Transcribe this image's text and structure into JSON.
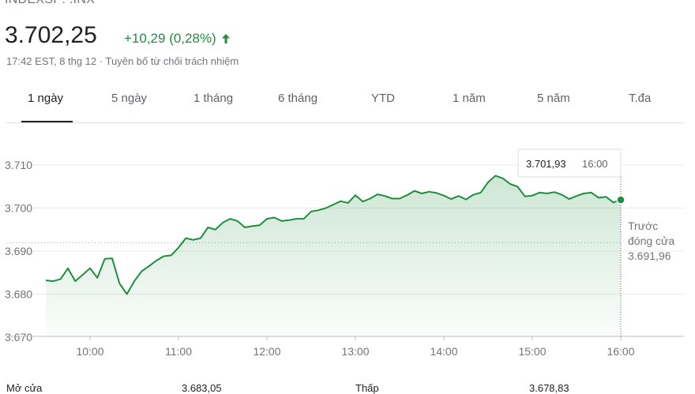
{
  "header": {
    "ticker": "INDEXSP: .INX",
    "price": "3.702,25",
    "change": "+10,29 (0,28%)",
    "change_color": "#1e8e3e",
    "timestamp": "17:42 EST, 8 thg 12",
    "disclaimer": "Tuyên bố từ chối trách nhiệm",
    "separator": " · "
  },
  "tabs": [
    {
      "label": "1 ngày",
      "active": true
    },
    {
      "label": "5 ngày"
    },
    {
      "label": "1 tháng"
    },
    {
      "label": "6 tháng"
    },
    {
      "label": "YTD"
    },
    {
      "label": "1 năm"
    },
    {
      "label": "5 năm"
    },
    {
      "label": "T.đa"
    }
  ],
  "tooltip": {
    "value": "3.701,93",
    "time": "16:00"
  },
  "prev_close": {
    "label_line1": "Trước",
    "label_line2": "đóng cửa",
    "value": "3.691,96"
  },
  "stats": [
    {
      "label": "Mở cửa",
      "value": "3.683,05"
    },
    {
      "label": "Thấp",
      "value": "3.678,83"
    }
  ],
  "chart_data": {
    "type": "area",
    "series": [
      {
        "x": [
          "09:30",
          "09:35",
          "09:40",
          "09:45",
          "09:50",
          "09:55",
          "10:00",
          "10:05",
          "10:10",
          "10:15",
          "10:20",
          "10:25",
          "10:30",
          "10:35",
          "10:40",
          "10:45",
          "10:50",
          "10:55",
          "11:00",
          "11:05",
          "11:10",
          "11:15",
          "11:20",
          "11:25",
          "11:30",
          "11:35",
          "11:40",
          "11:45",
          "11:50",
          "11:55",
          "12:00",
          "12:05",
          "12:10",
          "12:15",
          "12:20",
          "12:25",
          "12:30",
          "12:35",
          "12:40",
          "12:45",
          "12:50",
          "12:55",
          "13:00",
          "13:05",
          "13:10",
          "13:15",
          "13:20",
          "13:25",
          "13:30",
          "13:35",
          "13:40",
          "13:45",
          "13:50",
          "13:55",
          "14:00",
          "14:05",
          "14:10",
          "14:15",
          "14:20",
          "14:25",
          "14:30",
          "14:35",
          "14:40",
          "14:45",
          "14:50",
          "14:55",
          "15:00",
          "15:05",
          "15:10",
          "15:15",
          "15:20",
          "15:25",
          "15:30",
          "15:35",
          "15:40",
          "15:45",
          "15:50",
          "15:55",
          "16:00"
        ],
        "values": [
          3683.2,
          3683.0,
          3683.5,
          3686.0,
          3683.0,
          3684.5,
          3686.0,
          3683.8,
          3688.2,
          3688.3,
          3682.5,
          3680.0,
          3683.0,
          3685.3,
          3686.5,
          3687.8,
          3688.8,
          3689.0,
          3690.8,
          3693.0,
          3692.6,
          3693.0,
          3695.5,
          3695.0,
          3696.6,
          3697.5,
          3697.0,
          3695.5,
          3695.8,
          3696.0,
          3697.5,
          3697.8,
          3697.0,
          3697.2,
          3697.5,
          3697.5,
          3699.2,
          3699.5,
          3700.0,
          3700.8,
          3701.6,
          3701.2,
          3703.0,
          3701.5,
          3702.2,
          3703.2,
          3702.8,
          3702.2,
          3702.2,
          3703.0,
          3704.0,
          3703.4,
          3703.8,
          3703.5,
          3702.9,
          3702.1,
          3702.8,
          3702.0,
          3703.1,
          3703.6,
          3706.0,
          3707.5,
          3706.9,
          3705.6,
          3705.0,
          3702.7,
          3702.9,
          3703.6,
          3703.4,
          3703.7,
          3703.1,
          3702.1,
          3702.8,
          3703.4,
          3703.6,
          3702.4,
          3702.6,
          3701.3,
          3701.9
        ]
      }
    ],
    "x_ticks": [
      "10:00",
      "11:00",
      "12:00",
      "13:00",
      "14:00",
      "15:00",
      "16:00"
    ],
    "y_ticks": [
      "3.670",
      "3.680",
      "3.690",
      "3.700",
      "3.710"
    ],
    "ylim": [
      3670,
      3714
    ],
    "xlim": [
      "09:30",
      "16:00"
    ],
    "prev_close_value": 3691.96,
    "line_color": "#1e8e3e",
    "grid": true
  }
}
